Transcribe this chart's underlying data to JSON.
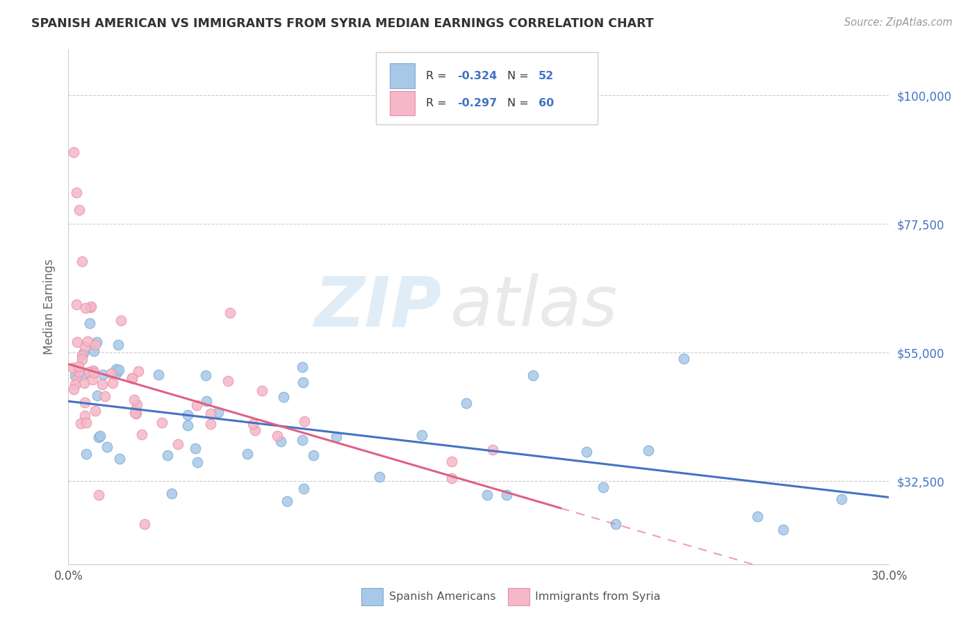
{
  "title": "SPANISH AMERICAN VS IMMIGRANTS FROM SYRIA MEDIAN EARNINGS CORRELATION CHART",
  "source": "Source: ZipAtlas.com",
  "ylabel": "Median Earnings",
  "ytick_labels": [
    "$32,500",
    "$55,000",
    "$77,500",
    "$100,000"
  ],
  "ytick_values": [
    32500,
    55000,
    77500,
    100000
  ],
  "ymin": 18000,
  "ymax": 108000,
  "xmin": 0.0,
  "xmax": 0.3,
  "watermark_zip": "ZIP",
  "watermark_atlas": "atlas",
  "blue_color": "#a8c8e8",
  "blue_edge_color": "#7aaad0",
  "pink_color": "#f5b8c8",
  "pink_edge_color": "#e890a8",
  "blue_line_color": "#4472c4",
  "pink_line_color": "#e06080",
  "grid_color": "#cccccc",
  "title_color": "#333333",
  "source_color": "#999999",
  "ylabel_color": "#666666",
  "legend_text_color": "#333333",
  "legend_value_color": "#4472c4",
  "bottom_legend_color": "#555555"
}
